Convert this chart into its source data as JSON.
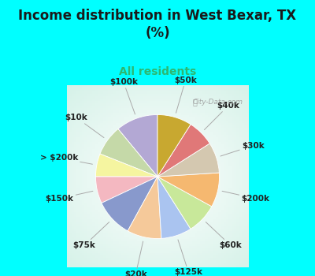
{
  "title": "Income distribution in West Bexar, TX\n(%)",
  "subtitle": "All residents",
  "title_color": "#1a1a1a",
  "subtitle_color": "#2db870",
  "bg_cyan": "#00ffff",
  "chart_bg_color": "#c8ede0",
  "watermark": "City-Data.com",
  "labels": [
    "$100k",
    "$10k",
    "> $200k",
    "$150k",
    "$75k",
    "$20k",
    "$125k",
    "$60k",
    "$200k",
    "$30k",
    "$40k",
    "$50k"
  ],
  "values": [
    11,
    8,
    6,
    7,
    10,
    9,
    8,
    8,
    9,
    8,
    7,
    9
  ],
  "colors": [
    "#b3a8d4",
    "#c5d9a8",
    "#f5f5a0",
    "#f4b8c1",
    "#8899cc",
    "#f5c99a",
    "#aac4f0",
    "#c8e89a",
    "#f5b870",
    "#d4c8b0",
    "#e07878",
    "#c8a830"
  ],
  "startangle": 90,
  "figsize": [
    4.0,
    3.5
  ],
  "dpi": 100,
  "label_fontsize": 7.5,
  "title_fontsize": 12,
  "subtitle_fontsize": 10
}
